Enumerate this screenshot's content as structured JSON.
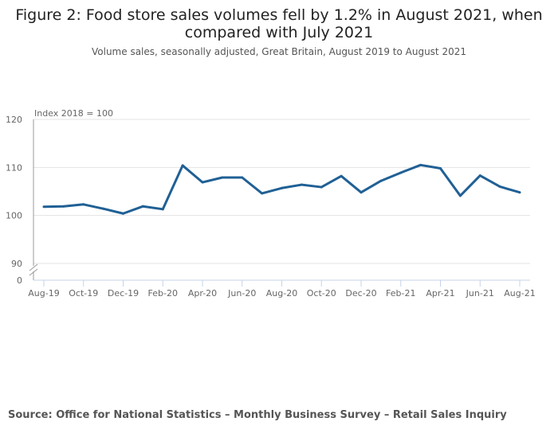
{
  "chart_data": {
    "type": "line",
    "title": "Figure 2: Food store sales volumes fell by 1.2% in August 2021, when compared with July 2021",
    "subtitle": "Volume sales, seasonally adjusted, Great Britain, August 2019 to August 2021",
    "ylabel": "Index 2018 = 100",
    "xlabel": "",
    "ylim": [
      90,
      120
    ],
    "y_axis_break": true,
    "yticks": [
      "0",
      "90",
      "100",
      "110",
      "120"
    ],
    "x": [
      "Aug-19",
      "Sep-19",
      "Oct-19",
      "Nov-19",
      "Dec-19",
      "Jan-20",
      "Feb-20",
      "Mar-20",
      "Apr-20",
      "May-20",
      "Jun-20",
      "Jul-20",
      "Aug-20",
      "Sep-20",
      "Oct-20",
      "Nov-20",
      "Dec-20",
      "Jan-21",
      "Feb-21",
      "Mar-21",
      "Apr-21",
      "May-21",
      "Jun-21",
      "Jul-21",
      "Aug-21"
    ],
    "xtick_labels": [
      "Aug-19",
      "Oct-19",
      "Dec-19",
      "Feb-20",
      "Apr-20",
      "Jun-20",
      "Aug-20",
      "Oct-20",
      "Dec-20",
      "Feb-21",
      "Apr-21",
      "Jun-21",
      "Aug-21"
    ],
    "series": [
      {
        "values": [
          101.8,
          101.9,
          102.3,
          101.4,
          100.4,
          101.9,
          101.3,
          110.4,
          106.9,
          107.9,
          107.9,
          104.6,
          105.7,
          106.4,
          105.9,
          108.2,
          104.8,
          107.2,
          108.9,
          110.5,
          109.8,
          104.1,
          108.3,
          106.0,
          104.8
        ],
        "color": "#206095"
      }
    ],
    "grid": true,
    "source": "Source: Office for National Statistics – Monthly Business Survey – Retail Sales Inquiry"
  }
}
